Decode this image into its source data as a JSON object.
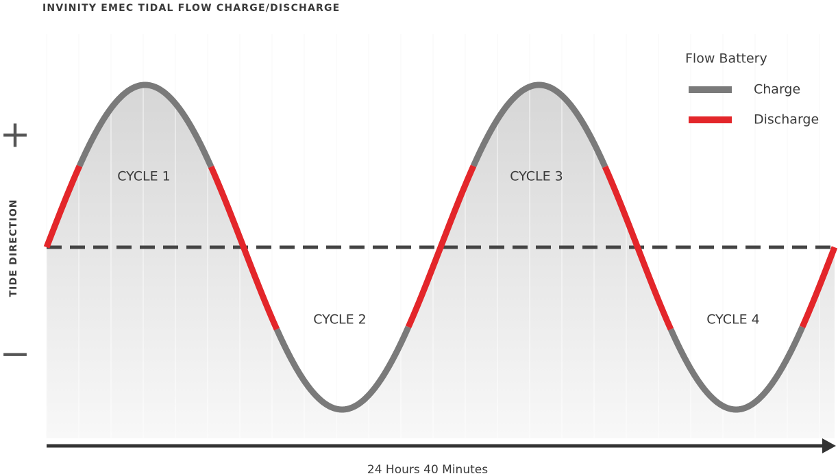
{
  "header": {
    "title": "INVINITY EMEC TIDAL FLOW CHARGE/DISCHARGE"
  },
  "y_axis": {
    "label": "TIDE DIRECTION",
    "positive": "+",
    "negative": "−"
  },
  "cycles": [
    "CYCLE 1",
    "CYCLE 2",
    "CYCLE 3",
    "CYCLE 4"
  ],
  "legend": {
    "title": "Flow Battery",
    "items": [
      {
        "label": "Charge",
        "color": "#7a7a7a"
      },
      {
        "label": "Discharge",
        "color": "#e3262a"
      }
    ]
  },
  "x_axis": {
    "label": "24 Hours 40 Minutes"
  }
}
